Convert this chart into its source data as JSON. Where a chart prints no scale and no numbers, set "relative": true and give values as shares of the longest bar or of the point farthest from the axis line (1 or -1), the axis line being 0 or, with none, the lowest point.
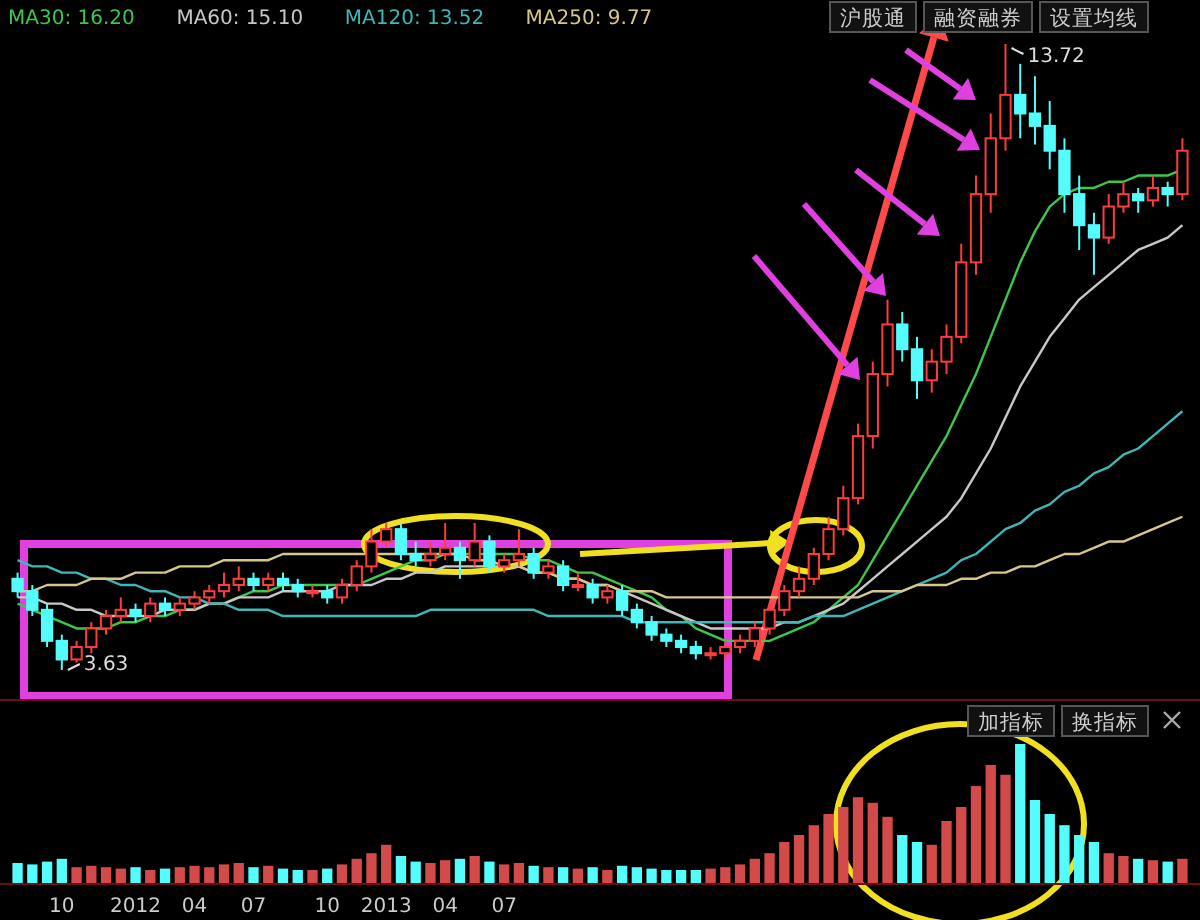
{
  "chart_data": [
    {
      "type": "candlestick",
      "legend": "top left",
      "categories": [
        null,
        null,
        null,
        null,
        null,
        null,
        null,
        null,
        null,
        null,
        null,
        null,
        null,
        null,
        null,
        null,
        null,
        null,
        null,
        null,
        null,
        null,
        null,
        null,
        null,
        null,
        null,
        null,
        null,
        null,
        null,
        null,
        null,
        null,
        null,
        null,
        null,
        null,
        null,
        null,
        null,
        null,
        null,
        null,
        null,
        null,
        null,
        null,
        null,
        null,
        null,
        null,
        null,
        null,
        null,
        null,
        null,
        null,
        null,
        null,
        null,
        null,
        null,
        null,
        null,
        null,
        null,
        null,
        null,
        null,
        null,
        null,
        null,
        null,
        null,
        null,
        null,
        null,
        null,
        null
      ],
      "ohlc": [
        [
          5.1,
          5.2,
          4.8,
          4.9
        ],
        [
          4.9,
          5.0,
          4.5,
          4.6
        ],
        [
          4.6,
          4.7,
          4.0,
          4.1
        ],
        [
          4.1,
          4.2,
          3.63,
          3.8
        ],
        [
          3.8,
          4.1,
          3.75,
          4.0
        ],
        [
          4.0,
          4.4,
          3.9,
          4.3
        ],
        [
          4.3,
          4.6,
          4.2,
          4.5
        ],
        [
          4.5,
          4.8,
          4.4,
          4.6
        ],
        [
          4.6,
          4.7,
          4.4,
          4.5
        ],
        [
          4.5,
          4.8,
          4.4,
          4.7
        ],
        [
          4.7,
          4.8,
          4.5,
          4.6
        ],
        [
          4.6,
          4.8,
          4.5,
          4.7
        ],
        [
          4.7,
          4.9,
          4.6,
          4.8
        ],
        [
          4.8,
          5.0,
          4.7,
          4.9
        ],
        [
          4.9,
          5.2,
          4.8,
          5.0
        ],
        [
          5.0,
          5.3,
          4.9,
          5.1
        ],
        [
          5.1,
          5.2,
          4.9,
          5.0
        ],
        [
          5.0,
          5.2,
          4.9,
          5.1
        ],
        [
          5.1,
          5.2,
          4.9,
          5.0
        ],
        [
          5.0,
          5.1,
          4.8,
          4.9
        ],
        [
          4.9,
          5.0,
          4.8,
          4.9
        ],
        [
          4.9,
          5.0,
          4.7,
          4.8
        ],
        [
          4.8,
          5.1,
          4.7,
          5.0
        ],
        [
          5.0,
          5.4,
          4.9,
          5.3
        ],
        [
          5.3,
          5.9,
          5.2,
          5.7
        ],
        [
          5.7,
          6.0,
          5.6,
          5.9
        ],
        [
          5.9,
          6.0,
          5.4,
          5.5
        ],
        [
          5.5,
          5.7,
          5.3,
          5.4
        ],
        [
          5.4,
          5.7,
          5.3,
          5.5
        ],
        [
          5.5,
          6.0,
          5.4,
          5.6
        ],
        [
          5.6,
          5.7,
          5.1,
          5.4
        ],
        [
          5.4,
          6.0,
          5.3,
          5.7
        ],
        [
          5.7,
          5.8,
          5.2,
          5.3
        ],
        [
          5.3,
          5.5,
          5.2,
          5.4
        ],
        [
          5.4,
          5.9,
          5.3,
          5.5
        ],
        [
          5.5,
          5.6,
          5.1,
          5.2
        ],
        [
          5.2,
          5.4,
          5.1,
          5.3
        ],
        [
          5.3,
          5.4,
          4.9,
          5.0
        ],
        [
          5.0,
          5.2,
          4.9,
          5.0
        ],
        [
          5.0,
          5.1,
          4.7,
          4.8
        ],
        [
          4.8,
          5.0,
          4.7,
          4.9
        ],
        [
          4.9,
          5.0,
          4.5,
          4.6
        ],
        [
          4.6,
          4.7,
          4.3,
          4.4
        ],
        [
          4.4,
          4.5,
          4.1,
          4.2
        ],
        [
          4.2,
          4.3,
          4.0,
          4.1
        ],
        [
          4.1,
          4.2,
          3.9,
          4.0
        ],
        [
          4.0,
          4.1,
          3.8,
          3.9
        ],
        [
          3.9,
          4.0,
          3.8,
          3.9
        ],
        [
          3.9,
          4.1,
          3.8,
          4.0
        ],
        [
          4.0,
          4.2,
          3.9,
          4.1
        ],
        [
          4.1,
          4.4,
          4.0,
          4.3
        ],
        [
          4.3,
          4.7,
          4.2,
          4.6
        ],
        [
          4.6,
          5.0,
          4.5,
          4.9
        ],
        [
          4.9,
          5.3,
          4.8,
          5.1
        ],
        [
          5.1,
          5.6,
          5.0,
          5.5
        ],
        [
          5.5,
          6.1,
          5.4,
          5.9
        ],
        [
          5.9,
          6.6,
          5.8,
          6.4
        ],
        [
          6.4,
          7.6,
          6.3,
          7.4
        ],
        [
          7.4,
          8.6,
          7.2,
          8.4
        ],
        [
          8.4,
          9.6,
          8.2,
          9.2
        ],
        [
          9.2,
          9.4,
          8.6,
          8.8
        ],
        [
          8.8,
          9.0,
          8.0,
          8.3
        ],
        [
          8.3,
          8.8,
          8.1,
          8.6
        ],
        [
          8.6,
          9.2,
          8.4,
          9.0
        ],
        [
          9.0,
          10.5,
          8.9,
          10.2
        ],
        [
          10.2,
          11.6,
          10.0,
          11.3
        ],
        [
          11.3,
          12.6,
          11.0,
          12.2
        ],
        [
          12.2,
          13.72,
          12.0,
          12.9
        ],
        [
          12.9,
          13.4,
          12.2,
          12.6
        ],
        [
          12.6,
          13.2,
          12.1,
          12.4
        ],
        [
          12.4,
          12.8,
          11.7,
          12.0
        ],
        [
          12.0,
          12.2,
          11.0,
          11.3
        ],
        [
          11.3,
          11.6,
          10.4,
          10.8
        ],
        [
          10.8,
          11.0,
          10.0,
          10.6
        ],
        [
          10.6,
          11.3,
          10.5,
          11.1
        ],
        [
          11.1,
          11.5,
          11.0,
          11.3
        ],
        [
          11.3,
          11.4,
          11.0,
          11.2
        ],
        [
          11.2,
          11.6,
          11.1,
          11.4
        ],
        [
          11.4,
          11.5,
          11.1,
          11.3
        ],
        [
          11.3,
          12.2,
          11.2,
          12.0
        ]
      ],
      "series": [
        {
          "type": "line",
          "name": "MA30: 16.20",
          "color": "#3cc84b",
          "values": [
            4.7,
            4.6,
            4.5,
            4.4,
            4.3,
            4.3,
            4.3,
            4.4,
            4.4,
            4.5,
            4.5,
            4.6,
            4.6,
            4.7,
            4.7,
            4.8,
            4.9,
            4.9,
            5.0,
            5.0,
            5.0,
            5.0,
            5.0,
            5.0,
            5.1,
            5.2,
            5.3,
            5.4,
            5.4,
            5.5,
            5.5,
            5.5,
            5.5,
            5.5,
            5.5,
            5.4,
            5.4,
            5.3,
            5.2,
            5.2,
            5.1,
            5.0,
            4.9,
            4.8,
            4.6,
            4.5,
            4.3,
            4.2,
            4.1,
            4.1,
            4.1,
            4.1,
            4.2,
            4.3,
            4.4,
            4.6,
            4.8,
            5.0,
            5.4,
            5.8,
            6.2,
            6.6,
            7.0,
            7.4,
            7.9,
            8.4,
            9.0,
            9.6,
            10.2,
            10.7,
            11.1,
            11.3,
            11.4,
            11.4,
            11.5,
            11.5,
            11.6,
            11.6,
            11.6,
            11.7
          ]
        },
        {
          "type": "line",
          "name": "MA60: 15.10",
          "color": "#c8c8c8",
          "values": [
            4.8,
            4.8,
            4.7,
            4.7,
            4.6,
            4.6,
            4.5,
            4.5,
            4.5,
            4.5,
            4.6,
            4.6,
            4.6,
            4.7,
            4.7,
            4.8,
            4.8,
            4.8,
            4.9,
            4.9,
            4.9,
            4.9,
            5.0,
            5.0,
            5.0,
            5.1,
            5.1,
            5.2,
            5.2,
            5.3,
            5.3,
            5.3,
            5.3,
            5.3,
            5.3,
            5.2,
            5.2,
            5.1,
            5.1,
            5.0,
            5.0,
            4.9,
            4.8,
            4.7,
            4.6,
            4.5,
            4.4,
            4.3,
            4.3,
            4.3,
            4.3,
            4.3,
            4.4,
            4.4,
            4.5,
            4.6,
            4.7,
            4.9,
            5.1,
            5.3,
            5.5,
            5.7,
            5.9,
            6.1,
            6.4,
            6.8,
            7.2,
            7.7,
            8.2,
            8.6,
            9.0,
            9.3,
            9.6,
            9.8,
            10.0,
            10.2,
            10.4,
            10.5,
            10.6,
            10.8
          ]
        },
        {
          "type": "line",
          "name": "MA120: 13.52",
          "color": "#3fb7b7",
          "values": [
            5.4,
            5.3,
            5.3,
            5.2,
            5.2,
            5.1,
            5.1,
            5.0,
            5.0,
            4.9,
            4.9,
            4.8,
            4.8,
            4.7,
            4.7,
            4.6,
            4.6,
            4.6,
            4.5,
            4.5,
            4.5,
            4.5,
            4.5,
            4.5,
            4.5,
            4.5,
            4.5,
            4.5,
            4.6,
            4.6,
            4.6,
            4.6,
            4.6,
            4.6,
            4.6,
            4.6,
            4.5,
            4.5,
            4.5,
            4.5,
            4.5,
            4.5,
            4.4,
            4.4,
            4.4,
            4.4,
            4.4,
            4.4,
            4.4,
            4.4,
            4.4,
            4.4,
            4.4,
            4.4,
            4.5,
            4.5,
            4.5,
            4.6,
            4.7,
            4.8,
            4.9,
            5.0,
            5.1,
            5.2,
            5.4,
            5.5,
            5.7,
            5.9,
            6.0,
            6.2,
            6.3,
            6.5,
            6.6,
            6.8,
            6.9,
            7.1,
            7.2,
            7.4,
            7.6,
            7.8
          ]
        },
        {
          "type": "line",
          "name": "MA250: 9.77",
          "color": "#d8c78a",
          "values": [
            4.9,
            4.9,
            5.0,
            5.0,
            5.0,
            5.1,
            5.1,
            5.1,
            5.2,
            5.2,
            5.2,
            5.3,
            5.3,
            5.3,
            5.4,
            5.4,
            5.4,
            5.4,
            5.5,
            5.5,
            5.5,
            5.5,
            5.5,
            5.5,
            5.5,
            5.5,
            5.5,
            5.5,
            5.5,
            5.5,
            5.5,
            5.4,
            5.4,
            5.3,
            5.3,
            5.2,
            5.2,
            5.1,
            5.1,
            5.0,
            5.0,
            4.9,
            4.9,
            4.9,
            4.8,
            4.8,
            4.8,
            4.8,
            4.8,
            4.8,
            4.8,
            4.8,
            4.8,
            4.8,
            4.8,
            4.8,
            4.8,
            4.8,
            4.9,
            4.9,
            4.9,
            5.0,
            5.0,
            5.0,
            5.1,
            5.1,
            5.2,
            5.2,
            5.3,
            5.3,
            5.4,
            5.5,
            5.5,
            5.6,
            5.7,
            5.7,
            5.8,
            5.9,
            6.0,
            6.1
          ]
        }
      ],
      "annotations": [
        "沪股通",
        "融资融券",
        "设置均线",
        "3.63",
        "13.72"
      ]
    },
    {
      "type": "bar",
      "relative": true,
      "categories": [
        null,
        null,
        null,
        "10",
        null,
        null,
        null,
        null,
        "2012",
        null,
        null,
        null,
        "04",
        null,
        null,
        null,
        "07",
        null,
        null,
        null,
        null,
        "10",
        null,
        null,
        null,
        "2013",
        null,
        null,
        null,
        "04",
        null,
        null,
        null,
        "07",
        null,
        null,
        null,
        null,
        null,
        null,
        null,
        null,
        null,
        null,
        null,
        null,
        null,
        null,
        null,
        null,
        null,
        null,
        null,
        null,
        null,
        null,
        null,
        null,
        null,
        null,
        null,
        null,
        null,
        null,
        null,
        null,
        null,
        null,
        null,
        null,
        null,
        null,
        null,
        null,
        null,
        null,
        null,
        null,
        null,
        null
      ],
      "values": [
        0.15,
        0.14,
        0.16,
        0.18,
        0.12,
        0.13,
        0.12,
        0.11,
        0.12,
        0.1,
        0.11,
        0.12,
        0.13,
        0.12,
        0.14,
        0.15,
        0.12,
        0.13,
        0.11,
        0.1,
        0.1,
        0.11,
        0.14,
        0.18,
        0.22,
        0.28,
        0.2,
        0.16,
        0.15,
        0.17,
        0.18,
        0.2,
        0.16,
        0.14,
        0.15,
        0.13,
        0.12,
        0.12,
        0.11,
        0.12,
        0.1,
        0.13,
        0.12,
        0.11,
        0.1,
        0.1,
        0.1,
        0.11,
        0.12,
        0.14,
        0.18,
        0.22,
        0.3,
        0.35,
        0.42,
        0.5,
        0.55,
        0.62,
        0.58,
        0.48,
        0.35,
        0.3,
        0.28,
        0.45,
        0.55,
        0.7,
        0.85,
        0.78,
        1.0,
        0.6,
        0.5,
        0.42,
        0.35,
        0.3,
        0.22,
        0.2,
        0.18,
        0.17,
        0.16,
        0.18
      ],
      "colors": [
        "#54fcfc",
        "#54fcfc",
        "#54fcfc",
        "#54fcfc",
        "#d24a4a",
        "#d24a4a",
        "#d24a4a",
        "#d24a4a",
        "#54fcfc",
        "#d24a4a",
        "#54fcfc",
        "#d24a4a",
        "#d24a4a",
        "#d24a4a",
        "#d24a4a",
        "#d24a4a",
        "#54fcfc",
        "#d24a4a",
        "#54fcfc",
        "#54fcfc",
        "#d24a4a",
        "#54fcfc",
        "#d24a4a",
        "#d24a4a",
        "#d24a4a",
        "#d24a4a",
        "#54fcfc",
        "#54fcfc",
        "#d24a4a",
        "#d24a4a",
        "#54fcfc",
        "#d24a4a",
        "#54fcfc",
        "#d24a4a",
        "#d24a4a",
        "#54fcfc",
        "#d24a4a",
        "#54fcfc",
        "#d24a4a",
        "#54fcfc",
        "#d24a4a",
        "#54fcfc",
        "#54fcfc",
        "#54fcfc",
        "#54fcfc",
        "#54fcfc",
        "#54fcfc",
        "#d24a4a",
        "#d24a4a",
        "#d24a4a",
        "#d24a4a",
        "#d24a4a",
        "#d24a4a",
        "#d24a4a",
        "#d24a4a",
        "#d24a4a",
        "#d24a4a",
        "#d24a4a",
        "#d24a4a",
        "#d24a4a",
        "#54fcfc",
        "#54fcfc",
        "#d24a4a",
        "#d24a4a",
        "#d24a4a",
        "#d24a4a",
        "#d24a4a",
        "#d24a4a",
        "#54fcfc",
        "#54fcfc",
        "#54fcfc",
        "#54fcfc",
        "#54fcfc",
        "#54fcfc",
        "#d24a4a",
        "#d24a4a",
        "#54fcfc",
        "#d24a4a",
        "#54fcfc",
        "#d24a4a"
      ],
      "annotations": [
        "加指标",
        "换指标"
      ]
    }
  ]
}
